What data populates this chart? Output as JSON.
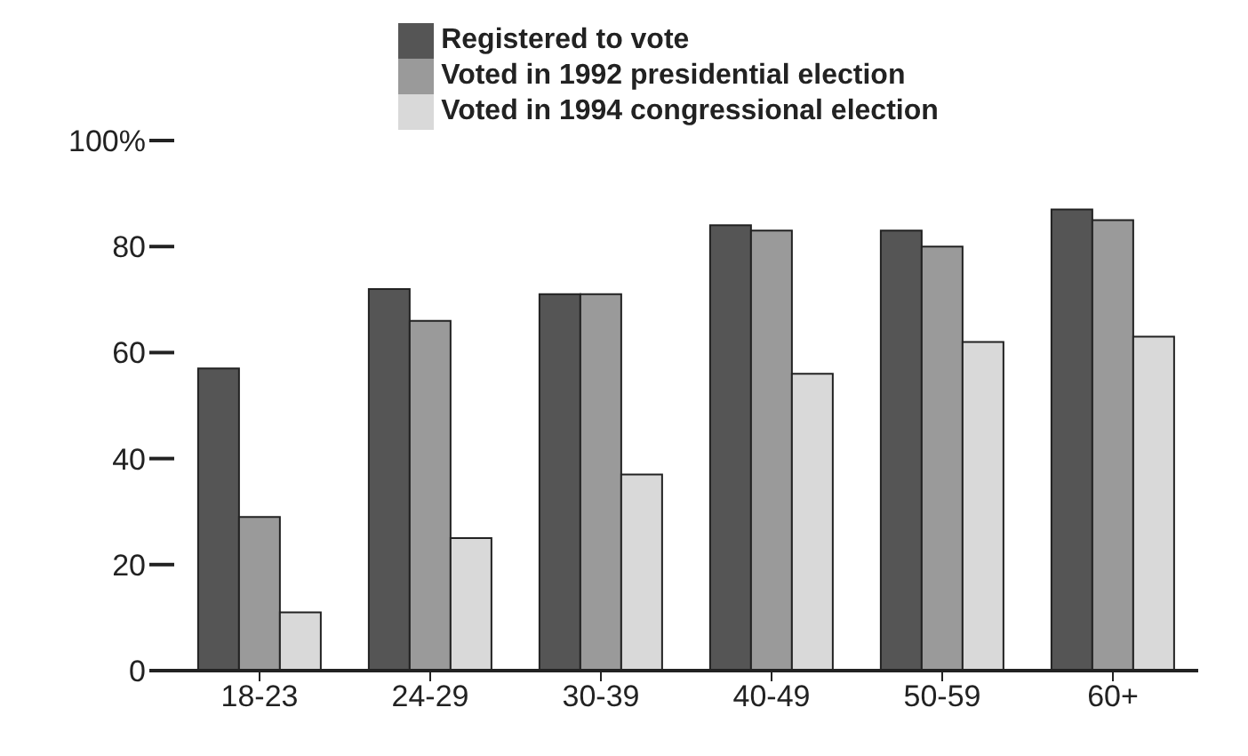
{
  "chart_data": {
    "type": "bar",
    "categories": [
      "18-23",
      "24-29",
      "30-39",
      "40-49",
      "50-59",
      "60+"
    ],
    "series": [
      {
        "name": "Registered to vote",
        "color": "#555555",
        "values": [
          57,
          72,
          71,
          84,
          83,
          87
        ]
      },
      {
        "name": "Voted in 1992 presidential election",
        "color": "#9a9a9a",
        "values": [
          29,
          66,
          71,
          83,
          80,
          85
        ]
      },
      {
        "name": "Voted in 1994 congressional election",
        "color": "#d9d9d9",
        "values": [
          11,
          25,
          37,
          56,
          62,
          63
        ]
      }
    ],
    "ylim": [
      0,
      100
    ],
    "yticks": [
      0,
      20,
      40,
      60,
      80,
      {
        "value": 100,
        "label": "100%"
      }
    ],
    "grid": false,
    "legend": "top"
  }
}
